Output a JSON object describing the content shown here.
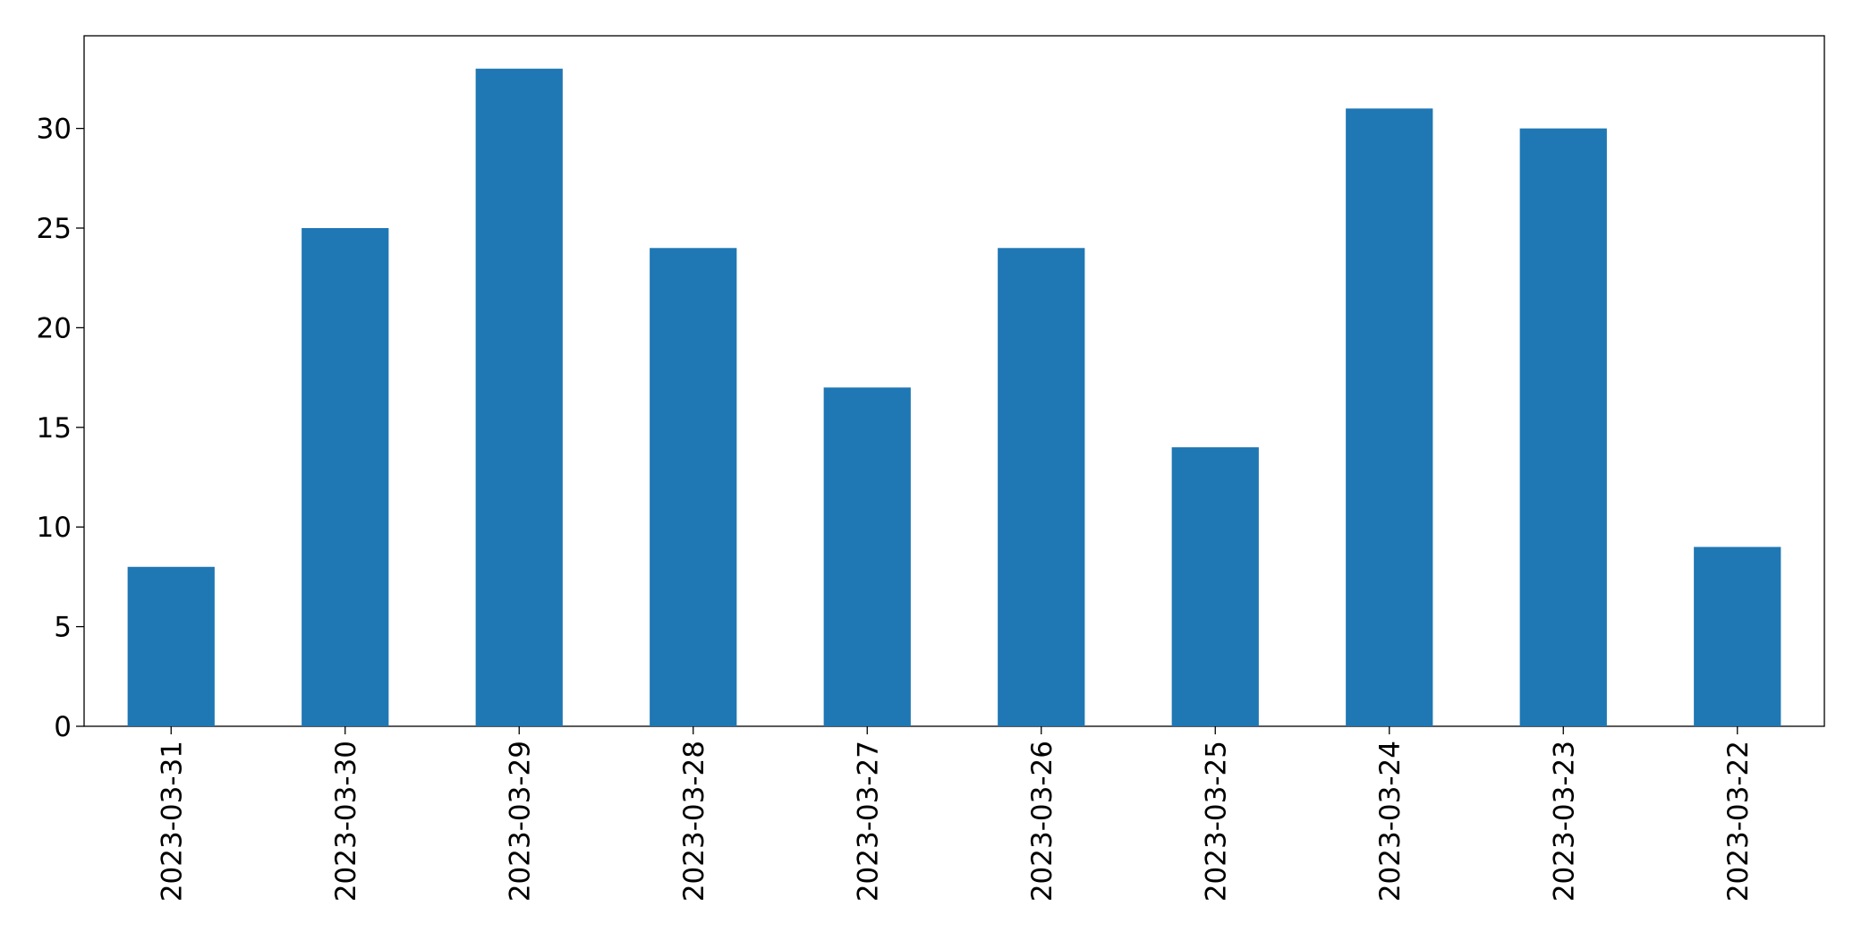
{
  "chart_data": {
    "type": "bar",
    "categories": [
      "2023-03-31",
      "2023-03-30",
      "2023-03-29",
      "2023-03-28",
      "2023-03-27",
      "2023-03-26",
      "2023-03-25",
      "2023-03-24",
      "2023-03-23",
      "2023-03-22"
    ],
    "values": [
      8,
      25,
      33,
      24,
      17,
      24,
      14,
      31,
      30,
      9
    ],
    "color": "#1f77b4",
    "ylim": [
      0,
      34.65
    ],
    "yticks": [
      0,
      5,
      10,
      15,
      20,
      25,
      30
    ],
    "grid": false
  }
}
